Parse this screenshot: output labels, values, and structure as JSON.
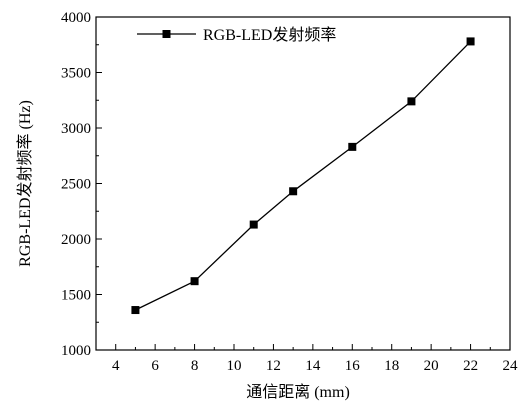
{
  "chart_data": {
    "type": "line",
    "xlabel": "通信距离 (mm)",
    "ylabel": "RGB-LED发射频率 (Hz)",
    "xlim": [
      3,
      24
    ],
    "ylim": [
      1000,
      4000
    ],
    "xticks": [
      4,
      6,
      8,
      10,
      12,
      14,
      16,
      18,
      20,
      22,
      24
    ],
    "yticks": [
      1000,
      1500,
      2000,
      2500,
      3000,
      3500,
      4000
    ],
    "grid": false,
    "legend_position": "top-left",
    "series": [
      {
        "name": "RGB-LED发射频率",
        "color": "#000000",
        "marker": "square",
        "x": [
          5,
          8,
          11,
          13,
          16,
          19,
          22
        ],
        "y": [
          1360,
          1620,
          2130,
          2430,
          2830,
          3240,
          3780
        ]
      }
    ]
  }
}
